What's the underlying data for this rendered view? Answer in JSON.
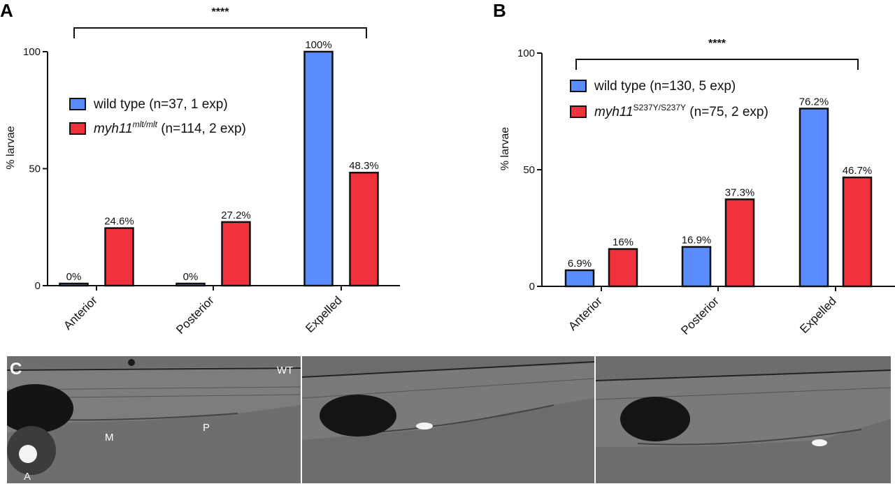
{
  "panels": {
    "a": "A",
    "b": "B",
    "c": "C"
  },
  "chart_data": [
    {
      "type": "bar",
      "panel": "A",
      "categories": [
        "Anterior",
        "Posterior",
        "Expelled"
      ],
      "ylabel": "% larvae",
      "ylim": [
        0,
        100
      ],
      "yticks": [
        0,
        50,
        100
      ],
      "series": [
        {
          "name": "wild type (n=37, 1 exp)",
          "color": "#5b8cff",
          "values": [
            0,
            0,
            100
          ],
          "labels": [
            "0%",
            "0%",
            "100%"
          ]
        },
        {
          "name": "myh11",
          "name_sup": "mlt/mlt",
          "name_rest": " (n=114, 2 exp)",
          "color": "#f0323c",
          "values": [
            24.6,
            27.2,
            48.3
          ],
          "labels": [
            "24.6%",
            "27.2%",
            "48.3%"
          ]
        }
      ],
      "significance": "****",
      "legend": "top-left"
    },
    {
      "type": "bar",
      "panel": "B",
      "categories": [
        "Anterior",
        "Posterior",
        "Expelled"
      ],
      "ylabel": "% larvae",
      "ylim": [
        0,
        100
      ],
      "yticks": [
        0,
        50,
        100
      ],
      "series": [
        {
          "name": "wild type (n=130, 5 exp)",
          "color": "#5b8cff",
          "values": [
            6.9,
            16.9,
            76.2
          ],
          "labels": [
            "6.9%",
            "16.9%",
            "76.2%"
          ]
        },
        {
          "name": "myh11",
          "name_sup": "S237Y/S237Y",
          "name_rest": " (n=75, 2 exp)",
          "color": "#f0323c",
          "values": [
            16,
            37.3,
            46.7
          ],
          "labels": [
            "16%",
            "37.3%",
            "46.7%"
          ]
        }
      ],
      "significance": "****",
      "legend": "top-left"
    }
  ],
  "photos": {
    "labels": {
      "wt": "WT",
      "m": "M",
      "p": "P",
      "a": "A"
    }
  }
}
